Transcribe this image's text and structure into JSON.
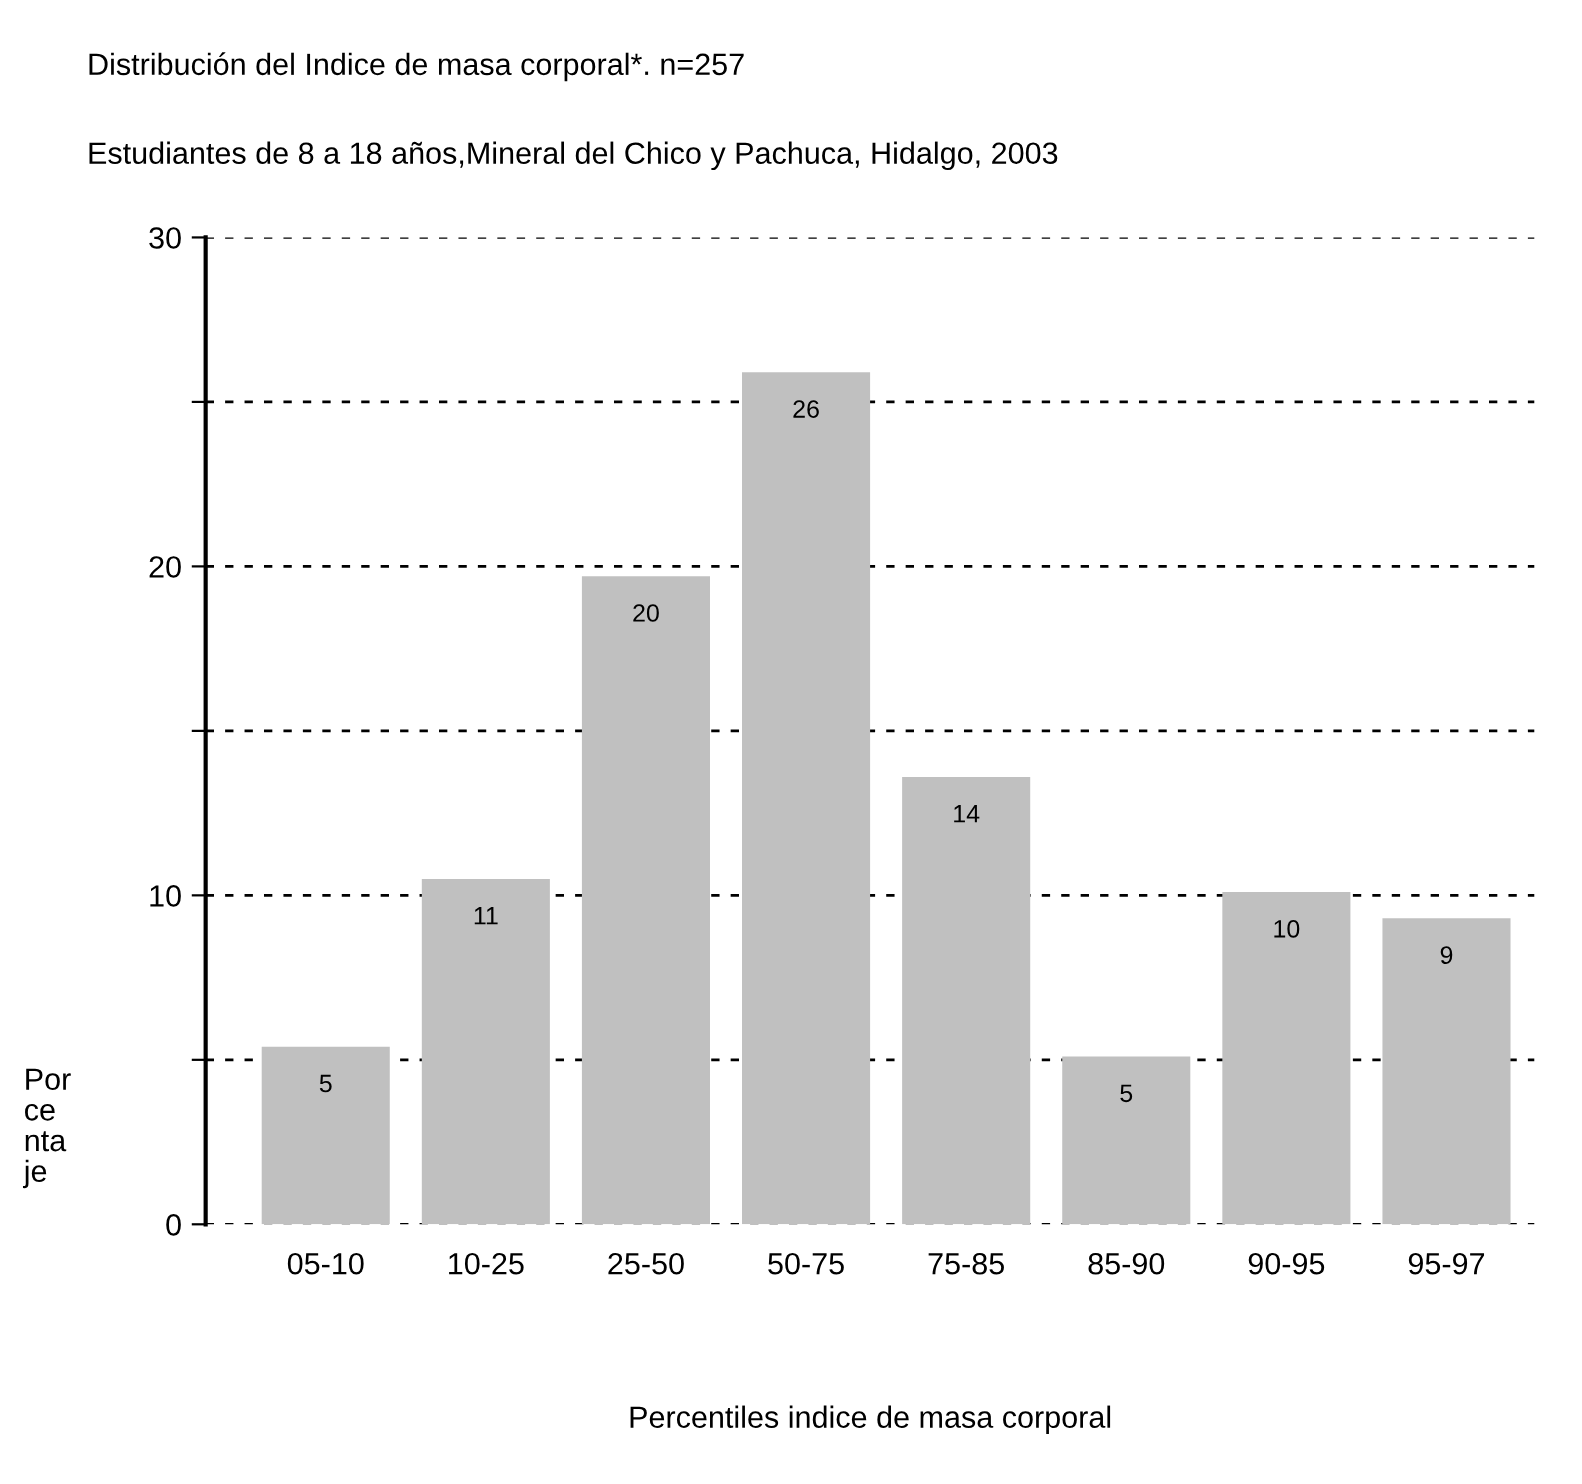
{
  "chart_data": {
    "type": "bar",
    "title": "Distribución del Indice de masa corporal*. n=257",
    "subtitle": "Estudiantes de 8 a 18 años,Mineral del Chico y Pachuca, Hidalgo, 2003",
    "xlabel": "Percentiles indice de masa corporal",
    "ylabel": "Por\nce\nnta\nje",
    "categories": [
      "05-10",
      "10-25",
      "25-50",
      "50-75",
      "75-85",
      "85-90",
      "90-95",
      "95-97"
    ],
    "values": [
      5.4,
      10.5,
      19.7,
      25.9,
      13.6,
      5.1,
      10.1,
      9.3
    ],
    "value_labels": [
      "5",
      "11",
      "20",
      "26",
      "14",
      "5",
      "10",
      "9"
    ],
    "color": "#c0c0c0",
    "ylim": [
      0,
      30
    ],
    "yticks": [
      0,
      {
        "value": 5,
        "label": null
      },
      10,
      {
        "value": 15,
        "label": null
      },
      20,
      {
        "value": 25,
        "label": null
      },
      30
    ],
    "grid": "y",
    "line_style": "dashed"
  }
}
